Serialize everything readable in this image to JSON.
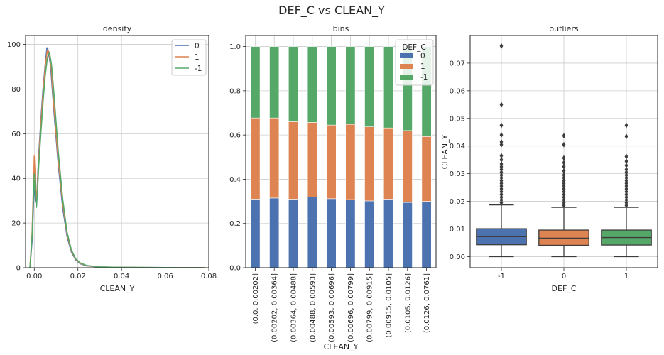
{
  "figure_title": "DEF_C   vs   CLEAN_Y",
  "colors": {
    "blue": "#4c72b0",
    "orange": "#dd8452",
    "green": "#55a868",
    "grid": "#cccccc",
    "box_line": "#3d3d3d"
  },
  "chart_data": [
    {
      "id": "density",
      "type": "line",
      "title": "density",
      "xlabel": "CLEAN_Y",
      "ylabel": "",
      "xlim": [
        -0.004,
        0.08
      ],
      "ylim": [
        0,
        104
      ],
      "xticks": [
        0.0,
        0.02,
        0.04,
        0.06,
        0.08
      ],
      "xtick_labels": [
        "0.00",
        "0.02",
        "0.04",
        "0.06",
        "0.08"
      ],
      "yticks": [
        0,
        20,
        40,
        60,
        80,
        100
      ],
      "ytick_labels": [
        "0",
        "20",
        "40",
        "60",
        "80",
        "100"
      ],
      "grid": true,
      "legend": {
        "position": "top-right",
        "entries": [
          "0",
          "1",
          "-1"
        ]
      },
      "series": [
        {
          "name": "0",
          "color": "#4c72b0",
          "x": [
            -0.002,
            -0.001,
            0.0,
            0.0005,
            0.001,
            0.0015,
            0.002,
            0.003,
            0.004,
            0.005,
            0.0058,
            0.0065,
            0.0075,
            0.009,
            0.011,
            0.013,
            0.015,
            0.017,
            0.019,
            0.021,
            0.024,
            0.03,
            0.04,
            0.05,
            0.06,
            0.07,
            0.078
          ],
          "y": [
            0,
            12,
            38,
            30,
            28,
            40,
            50,
            66,
            80,
            91,
            98.5,
            97,
            90,
            70,
            46,
            27,
            14,
            7,
            3.5,
            1.8,
            0.8,
            0.3,
            0.15,
            0.1,
            0.05,
            0.02,
            0
          ]
        },
        {
          "name": "1",
          "color": "#dd8452",
          "x": [
            -0.002,
            -0.001,
            0.0,
            0.0005,
            0.001,
            0.0015,
            0.002,
            0.003,
            0.004,
            0.005,
            0.006,
            0.0068,
            0.0078,
            0.009,
            0.011,
            0.013,
            0.015,
            0.017,
            0.019,
            0.021,
            0.024,
            0.03,
            0.04,
            0.05,
            0.06,
            0.07,
            0.078
          ],
          "y": [
            0,
            16,
            50,
            38,
            30,
            38,
            48,
            64,
            78,
            90,
            97.5,
            96.5,
            89,
            72,
            48,
            29,
            15,
            7.5,
            3.8,
            2,
            0.9,
            0.3,
            0.15,
            0.1,
            0.05,
            0.02,
            0
          ]
        },
        {
          "name": "-1",
          "color": "#55a868",
          "x": [
            -0.002,
            -0.001,
            0.0,
            0.0005,
            0.001,
            0.0015,
            0.002,
            0.003,
            0.004,
            0.005,
            0.006,
            0.007,
            0.008,
            0.009,
            0.011,
            0.013,
            0.015,
            0.017,
            0.019,
            0.021,
            0.024,
            0.03,
            0.04,
            0.05,
            0.06,
            0.07,
            0.078
          ],
          "y": [
            0,
            14,
            42,
            32,
            27,
            35,
            45,
            60,
            74,
            86,
            94,
            96.5,
            90,
            78,
            52,
            31,
            16,
            8,
            4,
            2.2,
            1,
            0.35,
            0.15,
            0.1,
            0.05,
            0.02,
            0
          ]
        }
      ]
    },
    {
      "id": "bins",
      "type": "bar",
      "stacked": true,
      "title": "bins",
      "xlabel": "CLEAN_Y",
      "ylabel": "",
      "ylim": [
        0,
        1.05
      ],
      "yticks": [
        0.0,
        0.2,
        0.4,
        0.6,
        0.8,
        1.0
      ],
      "ytick_labels": [
        "0.0",
        "0.2",
        "0.4",
        "0.6",
        "0.8",
        "1.0"
      ],
      "grid": true,
      "categories": [
        "(0.0, 0.00202]",
        "(0.00202, 0.00364]",
        "(0.00364, 0.00488]",
        "(0.00488, 0.00593]",
        "(0.00593, 0.00696]",
        "(0.00696, 0.00799]",
        "(0.00799, 0.00915]",
        "(0.00915, 0.0105]",
        "(0.0105, 0.0126]",
        "(0.0126, 0.0761]"
      ],
      "legend": {
        "position": "top-right",
        "title": "DEF_C",
        "entries": [
          "0",
          "1",
          "-1"
        ]
      },
      "series": [
        {
          "name": "0",
          "color": "#4c72b0",
          "values": [
            0.31,
            0.315,
            0.31,
            0.32,
            0.312,
            0.308,
            0.302,
            0.31,
            0.295,
            0.3
          ]
        },
        {
          "name": "1",
          "color": "#dd8452",
          "values": [
            0.367,
            0.362,
            0.35,
            0.337,
            0.333,
            0.34,
            0.335,
            0.322,
            0.325,
            0.293
          ]
        },
        {
          "name": "-1",
          "color": "#55a868",
          "values": [
            0.323,
            0.323,
            0.34,
            0.343,
            0.355,
            0.352,
            0.363,
            0.368,
            0.38,
            0.407
          ]
        }
      ]
    },
    {
      "id": "outliers",
      "type": "box",
      "title": "outliers",
      "xlabel": "DEF_C",
      "ylabel": "CLEAN_Y",
      "ylim": [
        -0.004,
        0.08
      ],
      "yticks": [
        0.0,
        0.01,
        0.02,
        0.03,
        0.04,
        0.05,
        0.06,
        0.07
      ],
      "ytick_labels": [
        "0.00",
        "0.01",
        "0.02",
        "0.03",
        "0.04",
        "0.05",
        "0.06",
        "0.07"
      ],
      "grid": true,
      "categories": [
        "-1",
        "0",
        "1"
      ],
      "boxes": [
        {
          "name": "-1",
          "color": "#4c72b0",
          "q1": 0.0043,
          "median": 0.0072,
          "q3": 0.0101,
          "whisker_low": 0.0,
          "whisker_high": 0.0187,
          "outliers": [
            0.0195,
            0.0205,
            0.0215,
            0.0225,
            0.0235,
            0.0245,
            0.0255,
            0.0265,
            0.0275,
            0.0285,
            0.0295,
            0.0305,
            0.0315,
            0.0325,
            0.0335,
            0.035,
            0.0365,
            0.0405,
            0.0415,
            0.044,
            0.0475,
            0.055,
            0.0762
          ]
        },
        {
          "name": "0",
          "color": "#dd8452",
          "q1": 0.0041,
          "median": 0.0067,
          "q3": 0.0096,
          "whisker_low": 0.0,
          "whisker_high": 0.0178,
          "outliers": [
            0.0185,
            0.0195,
            0.0205,
            0.0215,
            0.0225,
            0.0235,
            0.0245,
            0.0255,
            0.0265,
            0.0275,
            0.0285,
            0.0295,
            0.031,
            0.0325,
            0.034,
            0.0357,
            0.0405,
            0.0437
          ]
        },
        {
          "name": "1",
          "color": "#55a868",
          "q1": 0.0042,
          "median": 0.0069,
          "q3": 0.0096,
          "whisker_low": 0.0,
          "whisker_high": 0.0178,
          "outliers": [
            0.0185,
            0.0195,
            0.0205,
            0.0215,
            0.0225,
            0.0235,
            0.0245,
            0.0255,
            0.0265,
            0.0275,
            0.0285,
            0.0295,
            0.0305,
            0.0315,
            0.033,
            0.0345,
            0.0362,
            0.0435,
            0.0475
          ]
        }
      ]
    }
  ]
}
